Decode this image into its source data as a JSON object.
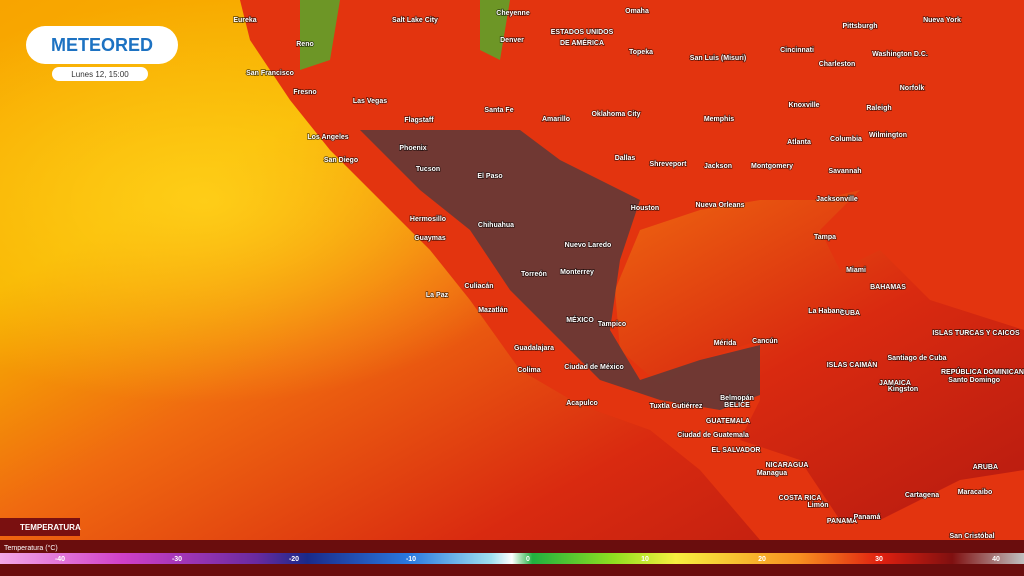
{
  "logo": {
    "text": "METEORED",
    "timestamp": "Lunes 12, 15:00"
  },
  "layer": {
    "label": "TEMPERATURA"
  },
  "legend": {
    "title": "Temperatura (°C)",
    "ticks": [
      -40,
      -30,
      -20,
      -10,
      0,
      10,
      20,
      30,
      40
    ]
  },
  "map": {
    "labels": [
      "Eureka",
      "Salt Lake City",
      "Cheyenne",
      "Omaha",
      "Nueva York",
      "Pittsburgh",
      "Reno",
      "Denver",
      "ESTADOS UNIDOS",
      "DE AMÉRICA",
      "Cincinnati",
      "Topeka",
      "Washington D.C.",
      "San Luis (Misuri)",
      "Charleston",
      "San Francisco",
      "Fresno",
      "Norfolk",
      "Las Vegas",
      "Santa Fe",
      "Amarillo",
      "Oklahoma City",
      "Memphis",
      "Knoxville",
      "Raleigh",
      "Flagstaff",
      "Los Angeles",
      "Wilmington",
      "Atlanta",
      "Columbia",
      "Phoenix",
      "San Diego",
      "Dallas",
      "Shreveport",
      "Jackson",
      "Montgomery",
      "Savannah",
      "Tucson",
      "El Paso",
      "Jacksonville",
      "Houston",
      "Nueva Orleans",
      "Hermosillo",
      "Chihuahua",
      "Guaymas",
      "Tampa",
      "Nuevo Laredo",
      "Monterrey",
      "Torreón",
      "Miami",
      "Culiacán",
      "BAHAMAS",
      "La Paz",
      "Mazatlán",
      "La Habana",
      "CUBA",
      "MÉXICO",
      "Tampico",
      "ISLAS TURCAS Y CAICOS",
      "Mérida",
      "Cancún",
      "Guadalajara",
      "Santiago de Cuba",
      "ISLAS CAIMÁN",
      "REPÚBLICA DOMINICANA",
      "Colima",
      "Ciudad de México",
      "JAMAICA",
      "Kingston",
      "Santo Domingo",
      "Belmopán",
      "BELICE",
      "Acapulco",
      "Tuxtla Gutiérrez",
      "GUATEMALA",
      "Ciudad de Guatemala",
      "EL SALVADOR",
      "ARUBA",
      "NICARAGUA",
      "Managua",
      "Cartagena",
      "Maracaibo",
      "COSTA RICA",
      "Limón",
      "PANAMÁ",
      "Panamá",
      "San Cristóbal"
    ]
  }
}
